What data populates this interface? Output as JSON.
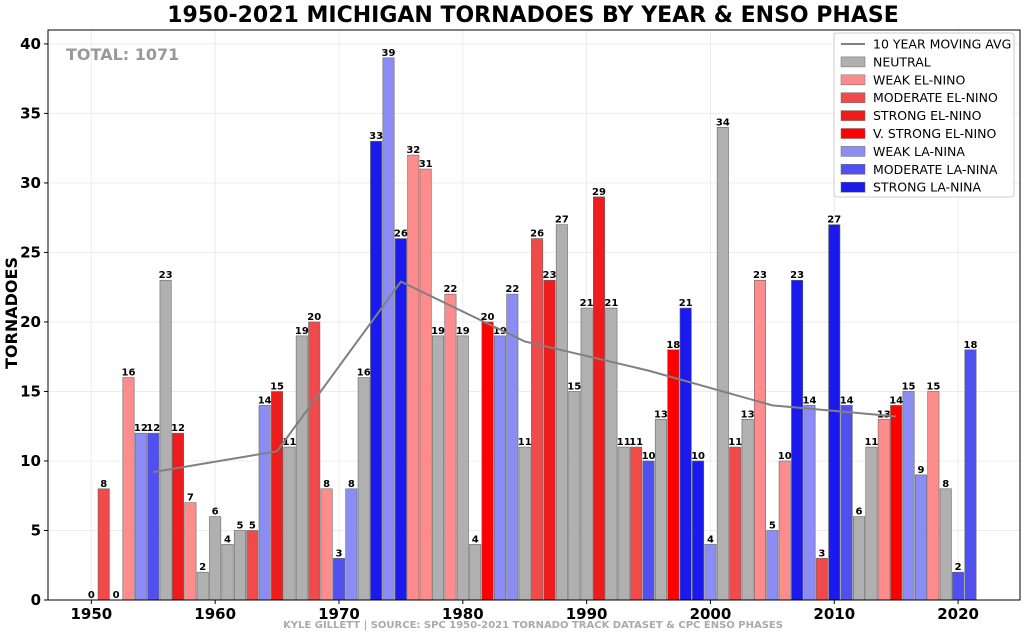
{
  "chart_data": {
    "type": "bar",
    "title": "1950-2021 MICHIGAN TORNADOES BY YEAR & ENSO PHASE",
    "ylabel": "TORNADOES",
    "xlabel": "",
    "total_label": "TOTAL: 1071",
    "credit": "KYLE GILLETT | SOURCE: SPC 1950-2021 TORNADO TRACK DATASET & CPC ENSO PHASES",
    "xlim": [
      1946.5,
      2025
    ],
    "ylim": [
      0,
      41
    ],
    "xticks": [
      1950,
      1960,
      1970,
      1980,
      1990,
      2000,
      2010,
      2020
    ],
    "yticks": [
      0,
      5,
      10,
      15,
      20,
      25,
      30,
      35,
      40
    ],
    "grid": true,
    "legend_position": "top-right",
    "phases": [
      {
        "key": "N",
        "name": "NEUTRAL",
        "color": "#b0b0b0"
      },
      {
        "key": "WE",
        "name": "WEAK EL-NINO",
        "color": "#ff8c8c"
      },
      {
        "key": "ME",
        "name": "MODERATE EL-NINO",
        "color": "#f04a4a"
      },
      {
        "key": "SE",
        "name": "STRONG EL-NINO",
        "color": "#ee1c1c"
      },
      {
        "key": "VE",
        "name": "V. STRONG EL-NINO",
        "color": "#ff0000"
      },
      {
        "key": "WL",
        "name": "WEAK LA-NINA",
        "color": "#8c8cf5"
      },
      {
        "key": "ML",
        "name": "MODERATE LA-NINA",
        "color": "#5050f0"
      },
      {
        "key": "SL",
        "name": "STRONG LA-NINA",
        "color": "#1a1aee"
      }
    ],
    "moving_average": {
      "name": "10 YEAR MOVING AVG",
      "color": "#808080",
      "x": [
        1955,
        1965,
        1975,
        1985,
        1995,
        2005,
        2015
      ],
      "y": [
        9.2,
        10.7,
        22.9,
        18.6,
        16.5,
        14.0,
        13.2
      ]
    },
    "bars": [
      {
        "year": 1950,
        "value": 0,
        "phase": "N"
      },
      {
        "year": 1951,
        "value": 8,
        "phase": "ME"
      },
      {
        "year": 1952,
        "value": 0,
        "phase": "N"
      },
      {
        "year": 1953,
        "value": 16,
        "phase": "WE"
      },
      {
        "year": 1954,
        "value": 12,
        "phase": "WL"
      },
      {
        "year": 1955,
        "value": 12,
        "phase": "ML"
      },
      {
        "year": 1956,
        "value": 23,
        "phase": "N"
      },
      {
        "year": 1957,
        "value": 12,
        "phase": "SE"
      },
      {
        "year": 1958,
        "value": 7,
        "phase": "WE"
      },
      {
        "year": 1959,
        "value": 2,
        "phase": "N"
      },
      {
        "year": 1960,
        "value": 6,
        "phase": "N"
      },
      {
        "year": 1961,
        "value": 4,
        "phase": "N"
      },
      {
        "year": 1962,
        "value": 5,
        "phase": "N"
      },
      {
        "year": 1963,
        "value": 5,
        "phase": "ME"
      },
      {
        "year": 1964,
        "value": 14,
        "phase": "WL"
      },
      {
        "year": 1965,
        "value": 15,
        "phase": "SE"
      },
      {
        "year": 1966,
        "value": 11,
        "phase": "N"
      },
      {
        "year": 1967,
        "value": 19,
        "phase": "N"
      },
      {
        "year": 1968,
        "value": 20,
        "phase": "ME"
      },
      {
        "year": 1969,
        "value": 8,
        "phase": "WE"
      },
      {
        "year": 1970,
        "value": 3,
        "phase": "ML"
      },
      {
        "year": 1971,
        "value": 8,
        "phase": "WL"
      },
      {
        "year": 1972,
        "value": 16,
        "phase": "N"
      },
      {
        "year": 1973,
        "value": 33,
        "phase": "SL"
      },
      {
        "year": 1974,
        "value": 39,
        "phase": "WL"
      },
      {
        "year": 1975,
        "value": 26,
        "phase": "SL"
      },
      {
        "year": 1976,
        "value": 32,
        "phase": "WE"
      },
      {
        "year": 1977,
        "value": 31,
        "phase": "WE"
      },
      {
        "year": 1978,
        "value": 19,
        "phase": "N"
      },
      {
        "year": 1979,
        "value": 22,
        "phase": "WE"
      },
      {
        "year": 1980,
        "value": 19,
        "phase": "N"
      },
      {
        "year": 1981,
        "value": 4,
        "phase": "N"
      },
      {
        "year": 1982,
        "value": 20,
        "phase": "VE"
      },
      {
        "year": 1983,
        "value": 19,
        "phase": "WL"
      },
      {
        "year": 1984,
        "value": 22,
        "phase": "WL"
      },
      {
        "year": 1985,
        "value": 11,
        "phase": "N"
      },
      {
        "year": 1986,
        "value": 26,
        "phase": "ME"
      },
      {
        "year": 1987,
        "value": 23,
        "phase": "SE"
      },
      {
        "year": 1988,
        "value": 27,
        "phase": "N"
      },
      {
        "year": 1989,
        "value": 15,
        "phase": "N"
      },
      {
        "year": 1990,
        "value": 21,
        "phase": "N"
      },
      {
        "year": 1991,
        "value": 29,
        "phase": "SE"
      },
      {
        "year": 1992,
        "value": 21,
        "phase": "N"
      },
      {
        "year": 1993,
        "value": 11,
        "phase": "N"
      },
      {
        "year": 1994,
        "value": 11,
        "phase": "ME"
      },
      {
        "year": 1995,
        "value": 10,
        "phase": "ML"
      },
      {
        "year": 1996,
        "value": 13,
        "phase": "N"
      },
      {
        "year": 1997,
        "value": 18,
        "phase": "VE"
      },
      {
        "year": 1998,
        "value": 21,
        "phase": "SL"
      },
      {
        "year": 1999,
        "value": 10,
        "phase": "SL"
      },
      {
        "year": 2000,
        "value": 4,
        "phase": "WL"
      },
      {
        "year": 2001,
        "value": 34,
        "phase": "N"
      },
      {
        "year": 2002,
        "value": 11,
        "phase": "ME"
      },
      {
        "year": 2003,
        "value": 13,
        "phase": "N"
      },
      {
        "year": 2004,
        "value": 23,
        "phase": "WE"
      },
      {
        "year": 2005,
        "value": 5,
        "phase": "WL"
      },
      {
        "year": 2006,
        "value": 10,
        "phase": "WE"
      },
      {
        "year": 2007,
        "value": 23,
        "phase": "SL"
      },
      {
        "year": 2008,
        "value": 14,
        "phase": "WL"
      },
      {
        "year": 2009,
        "value": 3,
        "phase": "ME"
      },
      {
        "year": 2010,
        "value": 27,
        "phase": "SL"
      },
      {
        "year": 2011,
        "value": 14,
        "phase": "ML"
      },
      {
        "year": 2012,
        "value": 6,
        "phase": "N"
      },
      {
        "year": 2013,
        "value": 11,
        "phase": "N"
      },
      {
        "year": 2014,
        "value": 13,
        "phase": "WE"
      },
      {
        "year": 2015,
        "value": 14,
        "phase": "VE"
      },
      {
        "year": 2016,
        "value": 15,
        "phase": "WL"
      },
      {
        "year": 2017,
        "value": 9,
        "phase": "WL"
      },
      {
        "year": 2018,
        "value": 15,
        "phase": "WE"
      },
      {
        "year": 2019,
        "value": 8,
        "phase": "N"
      },
      {
        "year": 2020,
        "value": 2,
        "phase": "ML"
      },
      {
        "year": 2021,
        "value": 18,
        "phase": "ML"
      }
    ]
  }
}
